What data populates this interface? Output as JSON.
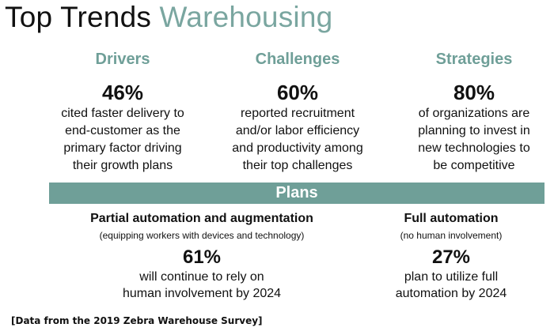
{
  "title": {
    "main": "Top Trends",
    "accent": "Warehousing"
  },
  "colors": {
    "accent": "#6f9f98",
    "title_accent": "#7aa6a0",
    "text": "#111111"
  },
  "columns": [
    {
      "heading": "Drivers",
      "percent": "46%",
      "lines": [
        "cited faster delivery to",
        "end-customer as the",
        "primary factor driving",
        "their growth plans"
      ]
    },
    {
      "heading": "Challenges",
      "percent": "60%",
      "lines": [
        "reported recruitment",
        "and/or labor efficiency",
        "and productivity among",
        "their top challenges"
      ]
    },
    {
      "heading": "Strategies",
      "percent": "80%",
      "lines": [
        "of organizations are",
        "planning to invest in",
        "new technologies to",
        "be competitive"
      ]
    }
  ],
  "plans": {
    "label": "Plans",
    "items": [
      {
        "heading": "Partial automation and augmentation",
        "subheading": "(equipping workers with devices and technology)",
        "percent": "61%",
        "lines": [
          "will continue to rely on",
          "human involvement by 2024"
        ]
      },
      {
        "heading": "Full automation",
        "subheading": "(no human involvement)",
        "percent": "27%",
        "lines": [
          "plan to utilize full",
          "automation by 2024"
        ]
      }
    ]
  },
  "footnote": "[Data from the 2019 Zebra Warehouse Survey]"
}
